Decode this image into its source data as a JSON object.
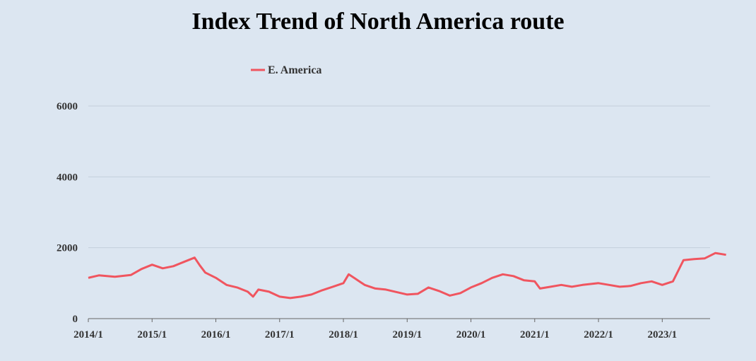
{
  "chart_data": {
    "type": "line",
    "title": "Index Trend of North America  route",
    "xlabel": "",
    "ylabel": "",
    "ylim": [
      0,
      6000
    ],
    "yticks": [
      "0",
      "2000",
      "4000",
      "6000"
    ],
    "xticks": [
      "2014/1",
      "2015/1",
      "2016/1",
      "2017/1",
      "2018/1",
      "2019/1",
      "2020/1",
      "2021/1",
      "2022/1",
      "2023/1"
    ],
    "xrange": [
      "2014-01",
      "2023-10"
    ],
    "grid": "horizontal",
    "legend_position": "top",
    "series": [
      {
        "name": "E. America",
        "color": "#f0555f",
        "points": [
          [
            "2014-01",
            1150
          ],
          [
            "2014-03",
            1220
          ],
          [
            "2014-06",
            1180
          ],
          [
            "2014-09",
            1230
          ],
          [
            "2014-11",
            1400
          ],
          [
            "2015-01",
            1520
          ],
          [
            "2015-03",
            1420
          ],
          [
            "2015-05",
            1480
          ],
          [
            "2015-07",
            1600
          ],
          [
            "2015-09",
            1720
          ],
          [
            "2015-10",
            1500
          ],
          [
            "2015-11",
            1300
          ],
          [
            "2016-01",
            1150
          ],
          [
            "2016-03",
            950
          ],
          [
            "2016-05",
            880
          ],
          [
            "2016-07",
            760
          ],
          [
            "2016-08",
            620
          ],
          [
            "2016-09",
            820
          ],
          [
            "2016-11",
            760
          ],
          [
            "2017-01",
            620
          ],
          [
            "2017-03",
            580
          ],
          [
            "2017-05",
            620
          ],
          [
            "2017-07",
            680
          ],
          [
            "2017-09",
            800
          ],
          [
            "2017-11",
            900
          ],
          [
            "2018-01",
            1000
          ],
          [
            "2018-02",
            1250
          ],
          [
            "2018-03",
            1150
          ],
          [
            "2018-05",
            950
          ],
          [
            "2018-07",
            850
          ],
          [
            "2018-09",
            820
          ],
          [
            "2018-11",
            750
          ],
          [
            "2019-01",
            680
          ],
          [
            "2019-03",
            700
          ],
          [
            "2019-05",
            880
          ],
          [
            "2019-07",
            780
          ],
          [
            "2019-09",
            650
          ],
          [
            "2019-11",
            720
          ],
          [
            "2020-01",
            880
          ],
          [
            "2020-03",
            1000
          ],
          [
            "2020-05",
            1150
          ],
          [
            "2020-07",
            1250
          ],
          [
            "2020-09",
            1200
          ],
          [
            "2020-11",
            1080
          ],
          [
            "2021-01",
            1050
          ],
          [
            "2021-02",
            850
          ],
          [
            "2021-04",
            900
          ],
          [
            "2021-06",
            950
          ],
          [
            "2021-08",
            900
          ],
          [
            "2021-10",
            950
          ],
          [
            "2022-01",
            1000
          ],
          [
            "2022-03",
            950
          ],
          [
            "2022-05",
            900
          ],
          [
            "2022-07",
            920
          ],
          [
            "2022-09",
            1000
          ],
          [
            "2022-11",
            1050
          ],
          [
            "2023-01",
            950
          ],
          [
            "2023-03",
            1050
          ],
          [
            "2023-05",
            1650
          ],
          [
            "2023-07",
            1680
          ],
          [
            "2023-09",
            1700
          ],
          [
            "2023-11",
            1850
          ],
          [
            "2024-01",
            1800
          ]
        ]
      }
    ]
  }
}
